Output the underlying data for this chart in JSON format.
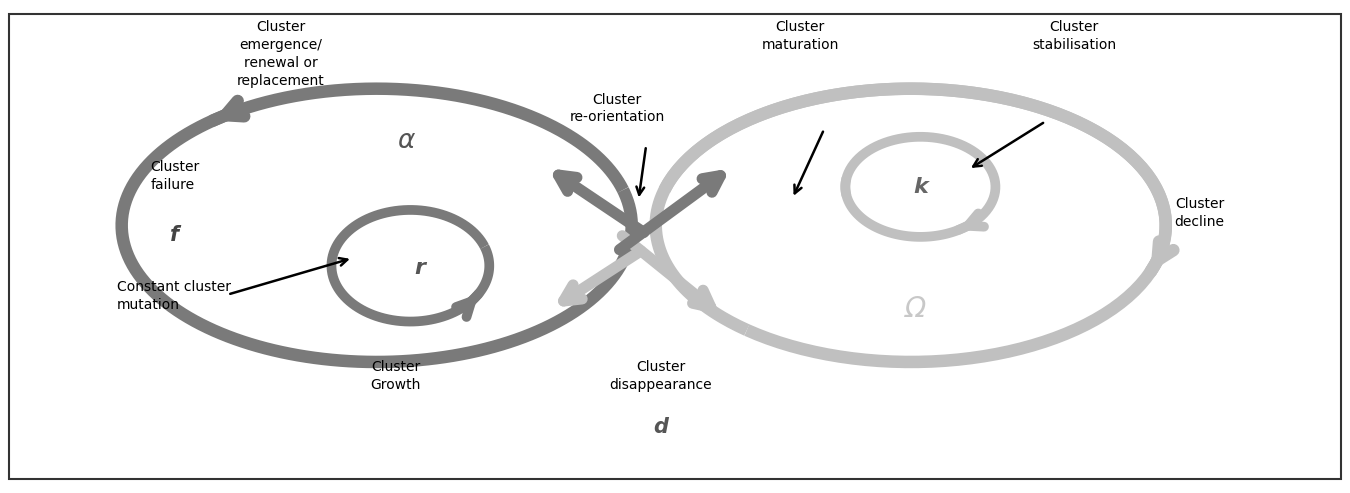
{
  "dark_gray": "#7a7a7a",
  "light_gray": "#c0c0c0",
  "black": "#111111",
  "labels": {
    "cluster_emergence": "Cluster\nemergence/\nrenewal or\nreplacement",
    "cluster_reorientation": "Cluster\nre-orientation",
    "cluster_maturation": "Cluster\nmaturation",
    "cluster_stabilisation": "Cluster\nstabilisation",
    "cluster_failure": "Cluster\nfailure",
    "cluster_decline": "Cluster\ndecline",
    "constant_mutation": "Constant cluster\nmutation",
    "cluster_growth": "Cluster\nGrowth",
    "cluster_disappearance": "Cluster\ndisappearance",
    "alpha": "α",
    "r": "r",
    "k": "k",
    "omega": "Ω",
    "d": "d",
    "f": "f"
  }
}
